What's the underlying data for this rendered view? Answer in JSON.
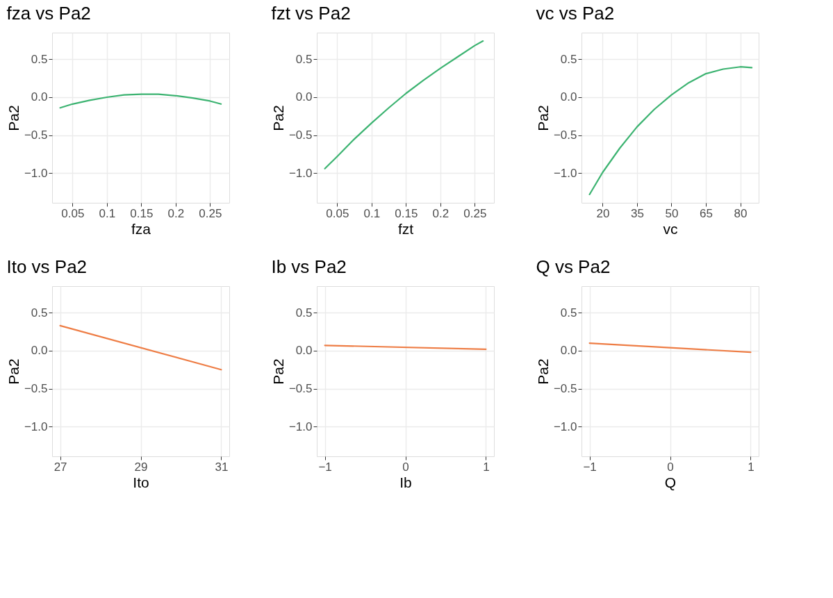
{
  "chart_data": [
    {
      "type": "line",
      "title": "fza vs Pa2",
      "xlabel": "fza",
      "ylabel": "Pa2",
      "x": [
        0.032,
        0.05,
        0.075,
        0.1,
        0.125,
        0.15,
        0.175,
        0.2,
        0.225,
        0.25,
        0.266
      ],
      "series": [
        {
          "color": "#3cb371",
          "values": [
            -0.14,
            -0.09,
            -0.04,
            0.0,
            0.03,
            0.04,
            0.04,
            0.02,
            -0.01,
            -0.05,
            -0.09
          ]
        }
      ],
      "xlim": [
        0.0203,
        0.278
      ],
      "xticks": [
        0.05,
        0.1,
        0.15,
        0.2,
        0.25
      ],
      "ylim": [
        -1.39,
        0.85
      ],
      "yticks": [
        {
          "value": -1.0,
          "label": "−1.0"
        },
        {
          "value": -0.5,
          "label": "−0.5"
        },
        {
          "value": 0.0,
          "label": "0.0"
        },
        {
          "value": 0.5,
          "label": "0.5"
        }
      ],
      "grid": true
    },
    {
      "type": "line",
      "title": "fzt vs Pa2",
      "xlabel": "fzt",
      "ylabel": "Pa2",
      "x": [
        0.032,
        0.05,
        0.075,
        0.1,
        0.125,
        0.15,
        0.175,
        0.2,
        0.225,
        0.25,
        0.262
      ],
      "series": [
        {
          "color": "#3cb371",
          "values": [
            -0.94,
            -0.78,
            -0.55,
            -0.34,
            -0.14,
            0.05,
            0.22,
            0.38,
            0.53,
            0.68,
            0.74
          ]
        }
      ],
      "xlim": [
        0.0203,
        0.278
      ],
      "xticks": [
        0.05,
        0.1,
        0.15,
        0.2,
        0.25
      ],
      "ylim": [
        -1.39,
        0.85
      ],
      "yticks": [
        {
          "value": -1.0,
          "label": "−1.0"
        },
        {
          "value": -0.5,
          "label": "−0.5"
        },
        {
          "value": 0.0,
          "label": "0.0"
        },
        {
          "value": 0.5,
          "label": "0.5"
        }
      ],
      "grid": true
    },
    {
      "type": "line",
      "title": "vc vs Pa2",
      "xlabel": "vc",
      "ylabel": "Pa2",
      "x": [
        14.3,
        20,
        27.5,
        35,
        42.5,
        50,
        57.5,
        65,
        72.5,
        80,
        85
      ],
      "series": [
        {
          "color": "#3cb371",
          "values": [
            -1.28,
            -0.99,
            -0.67,
            -0.39,
            -0.16,
            0.03,
            0.19,
            0.31,
            0.37,
            0.4,
            0.39
          ]
        }
      ],
      "xlim": [
        10.8,
        88.0
      ],
      "xticks": [
        20,
        35,
        50,
        65,
        80
      ],
      "ylim": [
        -1.39,
        0.85
      ],
      "yticks": [
        {
          "value": -1.0,
          "label": "−1.0"
        },
        {
          "value": -0.5,
          "label": "−0.5"
        },
        {
          "value": 0.0,
          "label": "0.0"
        },
        {
          "value": 0.5,
          "label": "0.5"
        }
      ],
      "grid": true
    },
    {
      "type": "line",
      "title": "Ito vs Pa2",
      "xlabel": "Ito",
      "ylabel": "Pa2",
      "x": [
        27,
        31
      ],
      "series": [
        {
          "color": "#ee7d45",
          "values": [
            0.33,
            -0.25
          ]
        }
      ],
      "xlim": [
        26.8,
        31.2
      ],
      "xticks": [
        27,
        29,
        31
      ],
      "ylim": [
        -1.39,
        0.85
      ],
      "yticks": [
        {
          "value": -1.0,
          "label": "−1.0"
        },
        {
          "value": -0.5,
          "label": "−0.5"
        },
        {
          "value": 0.0,
          "label": "0.0"
        },
        {
          "value": 0.5,
          "label": "0.5"
        }
      ],
      "grid": true
    },
    {
      "type": "line",
      "title": "Ib vs Pa2",
      "xlabel": "Ib",
      "ylabel": "Pa2",
      "x": [
        -1,
        1
      ],
      "series": [
        {
          "color": "#ee7d45",
          "values": [
            0.07,
            0.02
          ]
        }
      ],
      "xlim": [
        -1.1,
        1.1
      ],
      "xticks": [
        {
          "value": -1,
          "label": "−1"
        },
        0,
        1
      ],
      "ylim": [
        -1.39,
        0.85
      ],
      "yticks": [
        {
          "value": -1.0,
          "label": "−1.0"
        },
        {
          "value": -0.5,
          "label": "−0.5"
        },
        {
          "value": 0.0,
          "label": "0.0"
        },
        {
          "value": 0.5,
          "label": "0.5"
        }
      ],
      "grid": true
    },
    {
      "type": "line",
      "title": "Q vs Pa2",
      "xlabel": "Q",
      "ylabel": "Pa2",
      "x": [
        -1,
        1
      ],
      "series": [
        {
          "color": "#ee7d45",
          "values": [
            0.1,
            -0.02
          ]
        }
      ],
      "xlim": [
        -1.1,
        1.1
      ],
      "xticks": [
        {
          "value": -1,
          "label": "−1"
        },
        0,
        1
      ],
      "ylim": [
        -1.39,
        0.85
      ],
      "yticks": [
        {
          "value": -1.0,
          "label": "−1.0"
        },
        {
          "value": -0.5,
          "label": "−0.5"
        },
        {
          "value": 0.0,
          "label": "0.0"
        },
        {
          "value": 0.5,
          "label": "0.5"
        }
      ],
      "grid": true
    }
  ]
}
